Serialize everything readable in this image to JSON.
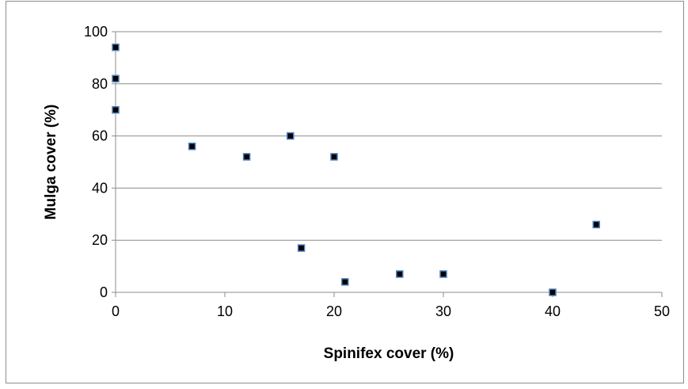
{
  "chart_data": {
    "type": "scatter",
    "title": "",
    "xlabel": "Spinifex cover (%)",
    "ylabel": "Mulga cover (%)",
    "xlim": [
      0,
      50
    ],
    "ylim": [
      0,
      100
    ],
    "xticks": [
      "0",
      "10",
      "20",
      "30",
      "40",
      "50"
    ],
    "yticks": [
      "0",
      "20",
      "40",
      "60",
      "80",
      "100"
    ],
    "grid": "horizontal",
    "legend": "none",
    "marker_color": "#000000",
    "marker_edge_color": "#4F81BD",
    "points": [
      {
        "x": 0,
        "y": 94
      },
      {
        "x": 0,
        "y": 82
      },
      {
        "x": 0,
        "y": 70
      },
      {
        "x": 7,
        "y": 56
      },
      {
        "x": 12,
        "y": 52
      },
      {
        "x": 16,
        "y": 60
      },
      {
        "x": 17,
        "y": 17
      },
      {
        "x": 20,
        "y": 52
      },
      {
        "x": 21,
        "y": 4
      },
      {
        "x": 26,
        "y": 7
      },
      {
        "x": 30,
        "y": 7
      },
      {
        "x": 40,
        "y": 0
      },
      {
        "x": 44,
        "y": 26
      }
    ]
  }
}
